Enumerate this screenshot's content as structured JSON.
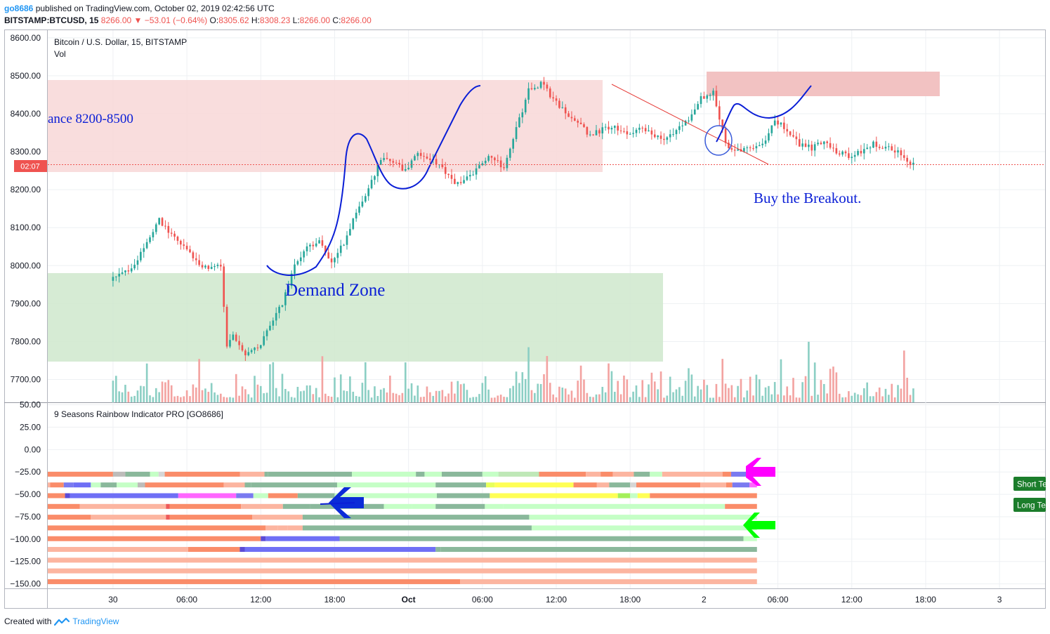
{
  "header": {
    "user": "go8686",
    "published_text": "published on TradingView.com, October 02, 2019 02:42:56 UTC",
    "symbol": "BITSTAMP:BTCUSD, 15",
    "last": "8266.00",
    "arrow": "▼",
    "change": "−53.01 (−0.64%)",
    "o_label": "O:",
    "o_value": "8305.62",
    "h_label": "H:",
    "h_value": "8308.23",
    "l_label": "L:",
    "l_value": "8266.00",
    "c_label": "C:",
    "c_value": "8266.00"
  },
  "footer": {
    "created_with": "Created with",
    "brand": "TradingView"
  },
  "colors": {
    "up": "#26a69a",
    "down": "#ef5350",
    "vol_up": "#8ccfc4",
    "vol_down": "#f3a3a1",
    "resistance_zone": "#f8d7d7",
    "demand_zone": "#cfe8cc",
    "target_zone": "#f2c2c2",
    "drawing": "#0a1ed6",
    "arrow_magenta": "#ff00ff",
    "arrow_green": "#00ff00",
    "arrow_blue": "#0b2bd8",
    "trend_line": "#e53935",
    "badge_green": "#1b7d2b"
  },
  "icons": [
    "tradingview-logo-icon",
    "down-triangle-icon",
    "magenta-arrow-icon",
    "green-arrow-icon",
    "blue-arrow-icon"
  ],
  "chart_data": [
    {
      "type": "candlestick",
      "title": "Bitcoin / U.S. Dollar, 15, BITSTAMP",
      "subtitle": "Vol",
      "ylim": [
        7640,
        8620
      ],
      "y_ticks": [
        7700,
        7800,
        7900,
        8000,
        8100,
        8200,
        8300,
        8400,
        8500,
        8600
      ],
      "y_tick_labels": [
        "7700.00",
        "7800.00",
        "7900.00",
        "8000.00",
        "8100.00",
        "8200.00",
        "8300.00",
        "8400.00",
        "8500.00",
        "8600.00"
      ],
      "price_label": "02:07",
      "current_price": 8266,
      "x_tick_labels": [
        "30",
        "06:00",
        "12:00",
        "18:00",
        "Oct",
        "06:00",
        "12:00",
        "18:00",
        "2",
        "06:00",
        "12:00",
        "18:00",
        "3"
      ],
      "x_tick_hours": [
        0,
        6,
        12,
        18,
        24,
        30,
        36,
        42,
        48,
        54,
        60,
        66,
        72
      ],
      "x_start_hours": -5.3,
      "x_end_hours": 75.7,
      "anchors": [
        [
          0,
          7960
        ],
        [
          2,
          8000
        ],
        [
          4,
          8120
        ],
        [
          5,
          8080
        ],
        [
          6,
          8050
        ],
        [
          7,
          8010
        ],
        [
          8,
          7990
        ],
        [
          9,
          8000
        ],
        [
          9.5,
          7780
        ],
        [
          10,
          7820
        ],
        [
          11,
          7770
        ],
        [
          12,
          7780
        ],
        [
          13,
          7840
        ],
        [
          14,
          7900
        ],
        [
          15,
          8000
        ],
        [
          16,
          8050
        ],
        [
          17,
          8060
        ],
        [
          18,
          8010
        ],
        [
          19,
          8060
        ],
        [
          20,
          8140
        ],
        [
          21,
          8200
        ],
        [
          22,
          8280
        ],
        [
          23,
          8270
        ],
        [
          24,
          8250
        ],
        [
          25,
          8300
        ],
        [
          26,
          8280
        ],
        [
          27,
          8260
        ],
        [
          28,
          8210
        ],
        [
          29,
          8230
        ],
        [
          30,
          8260
        ],
        [
          31,
          8290
        ],
        [
          32,
          8250
        ],
        [
          33,
          8360
        ],
        [
          34,
          8460
        ],
        [
          35,
          8480
        ],
        [
          36,
          8440
        ],
        [
          37,
          8400
        ],
        [
          38,
          8380
        ],
        [
          39,
          8340
        ],
        [
          40,
          8360
        ],
        [
          41,
          8370
        ],
        [
          42,
          8340
        ],
        [
          43,
          8360
        ],
        [
          44,
          8350
        ],
        [
          45,
          8330
        ],
        [
          46,
          8360
        ],
        [
          47,
          8380
        ],
        [
          48,
          8440
        ],
        [
          49,
          8460
        ],
        [
          50,
          8320
        ],
        [
          51,
          8300
        ],
        [
          52,
          8310
        ],
        [
          53,
          8320
        ],
        [
          54,
          8380
        ],
        [
          55,
          8360
        ],
        [
          56,
          8320
        ],
        [
          57,
          8310
        ],
        [
          58,
          8330
        ],
        [
          59,
          8300
        ],
        [
          60,
          8290
        ],
        [
          61,
          8300
        ],
        [
          62,
          8320
        ],
        [
          63,
          8310
        ],
        [
          64,
          8300
        ],
        [
          65,
          8266
        ]
      ],
      "volume": {
        "ylim": [
          0,
          250
        ]
      }
    },
    {
      "type": "heatmap",
      "title": "9 Seasons Rainbow Indicator PRO [GO8686]",
      "ylim": [
        -155,
        52
      ],
      "y_ticks": [
        50,
        25,
        0,
        -25,
        -50,
        -75,
        -100,
        -125,
        -150
      ],
      "y_tick_labels": [
        "50.00",
        "25.00",
        "0.00",
        "−25.00",
        "−50.00",
        "−75.00",
        "−100.00",
        "−125.00",
        "−150.00"
      ],
      "rows": [
        {
          "y": -27.5,
          "segments": [
            [
              -5.3,
              0,
              "#fa8c69"
            ],
            [
              0,
              1,
              "#bdbcba"
            ],
            [
              1,
              3,
              "#8ab89b"
            ],
            [
              3,
              3.7,
              "#c5ffc6"
            ],
            [
              3.7,
              4.2,
              "#d6d6d6"
            ],
            [
              4.2,
              10.3,
              "#fa8c69"
            ],
            [
              10.3,
              12.3,
              "#fcb5a0"
            ],
            [
              12.3,
              12.6,
              "#8ab89b"
            ],
            [
              12.6,
              19.4,
              "#8ab89b"
            ],
            [
              19.4,
              24.6,
              "#c5ffc6"
            ],
            [
              24.6,
              25.3,
              "#8ab89b"
            ],
            [
              25.3,
              26.7,
              "#c5ffc6"
            ],
            [
              26.7,
              30,
              "#8ab89b"
            ],
            [
              30,
              31.3,
              "#c5ffc6"
            ],
            [
              31.3,
              34.6,
              "#bfe8b7"
            ],
            [
              34.6,
              38.4,
              "#fa8c69"
            ],
            [
              38.4,
              39.6,
              "#fcb5a0"
            ],
            [
              39.6,
              40.6,
              "#fa8c69"
            ],
            [
              40.6,
              42.3,
              "#fcb5a0"
            ],
            [
              42.3,
              43.6,
              "#8ab89b"
            ],
            [
              43.6,
              44.6,
              "#c5ffc6"
            ],
            [
              44.6,
              49.5,
              "#fcb5a0"
            ],
            [
              49.5,
              50.2,
              "#fa8c69"
            ],
            [
              50.2,
              51.7,
              "#7a7af0"
            ],
            [
              51.7,
              52,
              "#cc44ee"
            ],
            [
              52,
              52.3,
              "#ff66ff"
            ]
          ]
        },
        {
          "y": -39.5,
          "segments": [
            [
              -5.3,
              -5.1,
              "#fcb5a0"
            ],
            [
              -5.1,
              -4.0,
              "#fa8c69"
            ],
            [
              -4.0,
              -3.2,
              "#7a7af0"
            ],
            [
              -3.2,
              -1.8,
              "#6f6ff5"
            ],
            [
              -1.8,
              -1.0,
              "#c5ffc6"
            ],
            [
              -1.0,
              0.3,
              "#8ab89b"
            ],
            [
              0.3,
              2.0,
              "#c5ffc6"
            ],
            [
              2.0,
              2.6,
              "#bdbcba"
            ],
            [
              2.6,
              9.0,
              "#fa8c69"
            ],
            [
              9.0,
              10.7,
              "#fcb5a0"
            ],
            [
              10.7,
              11.2,
              "#8ab89b"
            ],
            [
              11.2,
              18.2,
              "#8ab89b"
            ],
            [
              18.2,
              26.2,
              "#c5ffc6"
            ],
            [
              26.2,
              30.3,
              "#8ab89b"
            ],
            [
              30.3,
              31.0,
              "#e8ff5a"
            ],
            [
              31.0,
              37.4,
              "#ffff55"
            ],
            [
              37.4,
              39.3,
              "#fa8c69"
            ],
            [
              39.3,
              40.3,
              "#fcb5a0"
            ],
            [
              40.3,
              42.0,
              "#8ab89b"
            ],
            [
              42.0,
              42.5,
              "#d6d6d6"
            ],
            [
              42.5,
              47.7,
              "#fa8c69"
            ],
            [
              47.7,
              49.8,
              "#fcb5a0"
            ],
            [
              49.8,
              50.3,
              "#fa8c69"
            ],
            [
              50.3,
              51.7,
              "#7a7af0"
            ],
            [
              51.7,
              52.3,
              "#ff66ff"
            ]
          ]
        },
        {
          "y": -51.5,
          "segments": [
            [
              -5.3,
              -3.9,
              "#fa8c69"
            ],
            [
              -3.9,
              -3.5,
              "#5b4bd6"
            ],
            [
              -3.5,
              5.3,
              "#6f6ff5"
            ],
            [
              5.3,
              10.0,
              "#ff66ff"
            ],
            [
              10.0,
              11.4,
              "#7a7af0"
            ],
            [
              11.4,
              12.6,
              "#c5ffc6"
            ],
            [
              12.6,
              15.0,
              "#fa8c69"
            ],
            [
              15.0,
              18.0,
              "#8ab89b"
            ],
            [
              18.0,
              26.3,
              "#c5ffc6"
            ],
            [
              26.3,
              30.6,
              "#8ab89b"
            ],
            [
              30.6,
              41.0,
              "#ffff55"
            ],
            [
              41.0,
              42.0,
              "#a4ef5a"
            ],
            [
              42.0,
              42.6,
              "#c5ffc6"
            ],
            [
              42.6,
              43.6,
              "#ffff55"
            ],
            [
              43.6,
              52.3,
              "#fa8c69"
            ]
          ]
        },
        {
          "y": -63.5,
          "segments": [
            [
              -5.3,
              -2.7,
              "#fa8c69"
            ],
            [
              -2.7,
              4.3,
              "#fcb5a0"
            ],
            [
              4.3,
              4.6,
              "#ee5a5a"
            ],
            [
              4.6,
              10.4,
              "#fa8c69"
            ],
            [
              10.4,
              13.8,
              "#fcb5a0"
            ],
            [
              13.8,
              16.0,
              "#8ab89b"
            ],
            [
              16.0,
              22.0,
              "#8ab89b"
            ],
            [
              22.0,
              24.3,
              "#c5ffc6"
            ],
            [
              24.3,
              26.2,
              "#c5ffc6"
            ],
            [
              26.2,
              30.2,
              "#8ab89b"
            ],
            [
              30.2,
              31.7,
              "#c5ffc6"
            ],
            [
              31.7,
              49.7,
              "#c5ffc6"
            ],
            [
              49.7,
              52.3,
              "#fa8c69"
            ]
          ]
        },
        {
          "y": -75.5,
          "segments": [
            [
              -5.3,
              -1.8,
              "#fa8c69"
            ],
            [
              -1.8,
              4.3,
              "#fcb5a0"
            ],
            [
              4.3,
              4.6,
              "#ee5a5a"
            ],
            [
              4.6,
              11.3,
              "#fa8c69"
            ],
            [
              11.3,
              15.4,
              "#fcb5a0"
            ],
            [
              15.4,
              17.8,
              "#8ab89b"
            ],
            [
              17.8,
              33.8,
              "#8ab89b"
            ],
            [
              33.8,
              34.6,
              "#c5ffc6"
            ],
            [
              34.6,
              52.3,
              "#c5ffc6"
            ]
          ]
        },
        {
          "y": -87.5,
          "segments": [
            [
              -5.3,
              12.4,
              "#fa8c69"
            ],
            [
              12.4,
              13.4,
              "#fcb5a0"
            ],
            [
              13.4,
              14.2,
              "#fcb5a0"
            ],
            [
              14.2,
              15.4,
              "#fcb5a0"
            ],
            [
              15.4,
              34.0,
              "#8ab89b"
            ],
            [
              34.0,
              52.3,
              "#c5ffc6"
            ]
          ]
        },
        {
          "y": -99.5,
          "segments": [
            [
              -5.3,
              12.0,
              "#fa8c69"
            ],
            [
              12.0,
              12.4,
              "#5b4bd6"
            ],
            [
              12.4,
              18.4,
              "#6f6ff5"
            ],
            [
              18.4,
              51.2,
              "#8ab89b"
            ],
            [
              51.2,
              52.3,
              "#c5ffc6"
            ]
          ]
        },
        {
          "y": -111.5,
          "segments": [
            [
              -5.3,
              6.1,
              "#fcb5a0"
            ],
            [
              6.1,
              10.3,
              "#fa8c69"
            ],
            [
              10.3,
              10.7,
              "#5b4bd6"
            ],
            [
              10.7,
              26.2,
              "#6f6ff5"
            ],
            [
              26.2,
              26.6,
              "#8ab89b"
            ],
            [
              26.6,
              52.3,
              "#8ab89b"
            ]
          ]
        },
        {
          "y": -123.5,
          "segments": [
            [
              -5.3,
              52.3,
              "#fcb5a0"
            ]
          ]
        },
        {
          "y": -135.5,
          "segments": [
            [
              -5.3,
              52.3,
              "#fcb5a0"
            ]
          ]
        },
        {
          "y": -147.5,
          "segments": [
            [
              -5.3,
              28.2,
              "#fa8c69"
            ],
            [
              28.2,
              52.3,
              "#fcb5a0"
            ]
          ]
        }
      ]
    }
  ],
  "annotations": {
    "resistance_text": "ance 8200-8500",
    "demand_text": "Demand Zone",
    "breakout_text": "Buy the Breakout.",
    "short_label": "Short Te",
    "long_label": "Long Te"
  }
}
